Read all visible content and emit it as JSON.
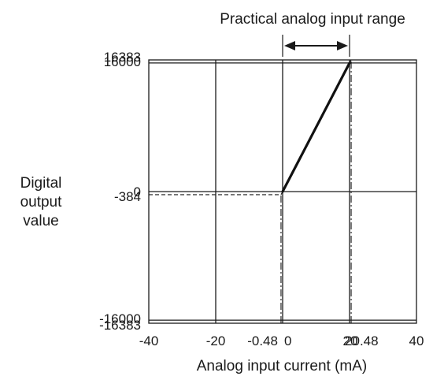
{
  "chart_data": {
    "type": "line",
    "title": "",
    "annotation": "Practical analog input range",
    "xlabel": "Analog input current (mA)",
    "ylabel": [
      "Digital",
      "output",
      "value"
    ],
    "xlim": [
      -40,
      40
    ],
    "ylim": [
      -16383,
      16383
    ],
    "grid": true,
    "x_ticks": [
      {
        "value": -40,
        "label": "-40"
      },
      {
        "value": -20,
        "label": "-20"
      },
      {
        "value": -0.48,
        "label": "-0.48"
      },
      {
        "value": 0,
        "label": "0"
      },
      {
        "value": 20,
        "label": "20"
      },
      {
        "value": 20.48,
        "label": "20.48"
      },
      {
        "value": 40,
        "label": "40"
      }
    ],
    "y_ticks": [
      {
        "value": 16383,
        "label": "16383"
      },
      {
        "value": 16000,
        "label": "16000"
      },
      {
        "value": 0,
        "label": "0"
      },
      {
        "value": -384,
        "label": "-384"
      },
      {
        "value": -16000,
        "label": "-16000"
      },
      {
        "value": -16383,
        "label": "-16383"
      }
    ],
    "series": [
      {
        "style": "solid-bold",
        "points": [
          [
            0,
            0
          ],
          [
            20,
            16000
          ]
        ]
      },
      {
        "style": "dashed",
        "points": [
          [
            -40,
            -384
          ],
          [
            -0.48,
            -384
          ],
          [
            0,
            0
          ]
        ]
      },
      {
        "style": "dashed",
        "points": [
          [
            20,
            16000
          ],
          [
            20.48,
            16383
          ]
        ]
      }
    ],
    "reference_lines": [
      {
        "style": "dash-dot",
        "axis": "x",
        "value": -0.48,
        "from": -16383,
        "to": -384
      },
      {
        "style": "dash-dot",
        "axis": "x",
        "value": 20.48,
        "from": -16383,
        "to": 16383
      }
    ],
    "range_arrow": [
      0,
      20
    ]
  }
}
